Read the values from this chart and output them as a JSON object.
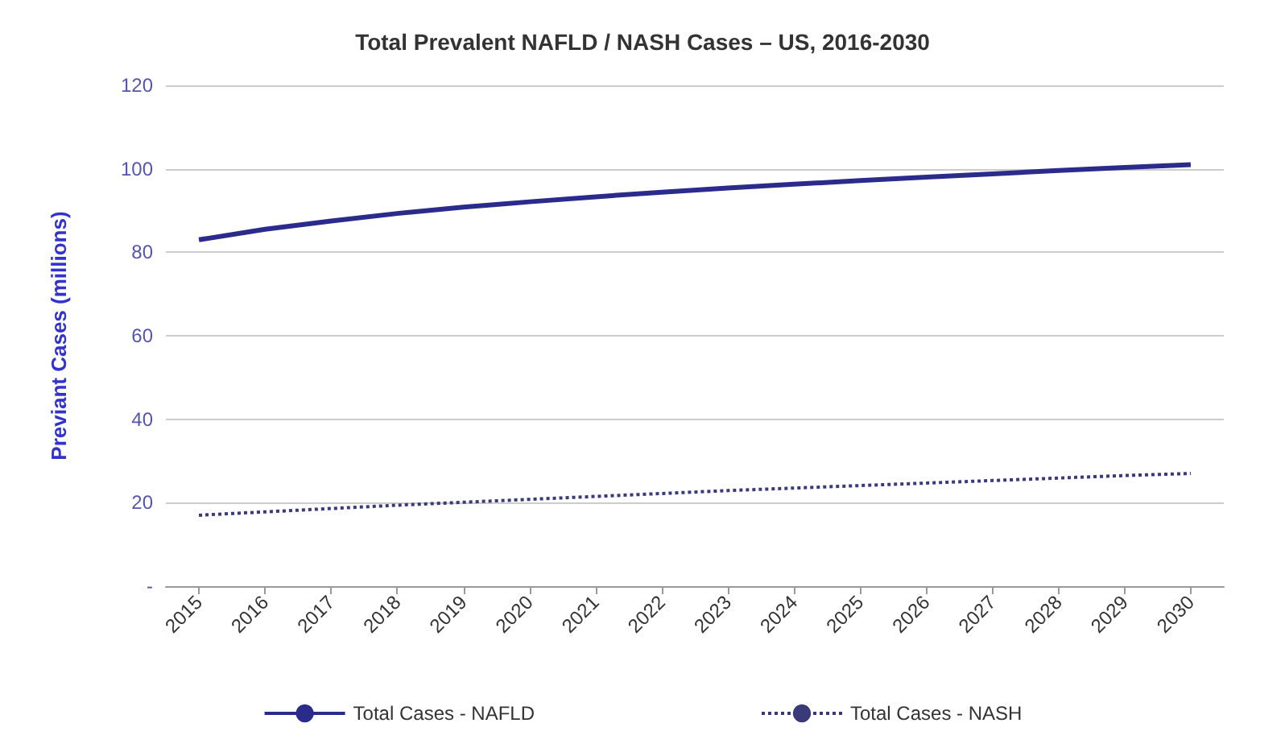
{
  "chart_data": {
    "type": "line",
    "title": "Total Prevalent NAFLD / NASH Cases – US, 2016-2030",
    "ylabel": "Previant Cases (millions)",
    "categories": [
      "2015",
      "2016",
      "2017",
      "2018",
      "2019",
      "2020",
      "2021",
      "2022",
      "2023",
      "2024",
      "2025",
      "2026",
      "2027",
      "2028",
      "2029",
      "2030"
    ],
    "series": [
      {
        "name": "Total Cases - NAFLD",
        "color": "#2b2b8c",
        "line_style": "solid",
        "values": [
          83,
          85.5,
          87.5,
          89.3,
          90.8,
          92.1,
          93.3,
          94.4,
          95.4,
          96.3,
          97.2,
          98,
          98.8,
          99.6,
          100.3,
          101
        ]
      },
      {
        "name": "Total Cases - NASH",
        "color": "#3a3a7a",
        "line_style": "dotted",
        "values": [
          17,
          17.8,
          18.6,
          19.4,
          20.1,
          20.8,
          21.5,
          22.2,
          22.9,
          23.5,
          24.1,
          24.7,
          25.3,
          25.9,
          26.5,
          27
        ]
      }
    ],
    "ylim": [
      0,
      120
    ],
    "yticks": [
      {
        "value": 0,
        "label": "-"
      },
      20,
      40,
      60,
      80,
      100,
      120
    ],
    "grid": "y",
    "legend": "bottom",
    "marker": "none"
  }
}
